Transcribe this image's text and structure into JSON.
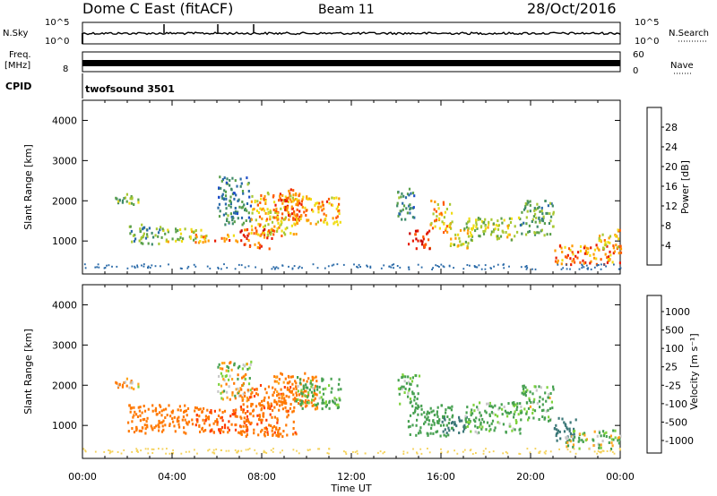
{
  "header": {
    "station": "Dome C East (fitACF)",
    "beam": "Beam 11",
    "date": "28/Oct/2016"
  },
  "top_panels": {
    "nsky_label": "N.Sky",
    "nsky_ticks": [
      "10^5",
      "10^0"
    ],
    "nsearch_label": "N.Search",
    "nsearch_ticks": [
      "10^5",
      "10^0"
    ],
    "freq_label_1": "Freq.",
    "freq_label_2": "[MHz]",
    "freq_ticks": [
      "8"
    ],
    "nave_label": "Nave",
    "nave_ticks": [
      "60",
      "0"
    ],
    "cpid_label": "CPID",
    "cpid_value": "twofsound 3501"
  },
  "colors": {
    "power_scale": [
      "#0a14e6",
      "#1e4ec8",
      "#2a6aa8",
      "#3e8a6a",
      "#5aa04a",
      "#a8c832",
      "#f0dc14",
      "#ff9a00",
      "#ff5a00",
      "#e81c00",
      "#c80000"
    ],
    "velocity_scale": [
      "#e60000",
      "#ff3c00",
      "#ff7800",
      "#ffa51e",
      "#f5d25a",
      "#c8c8c8",
      "#7ed23c",
      "#46a050",
      "#3c7878",
      "#3c64a0",
      "#2848c8"
    ]
  },
  "chart_data": [
    {
      "type": "heatmap",
      "panel": "power",
      "xlabel": "",
      "ylabel": "Slant Range [km]",
      "x_ticks": [
        "00:00",
        "04:00",
        "08:00",
        "12:00",
        "16:00",
        "20:00",
        "00:00"
      ],
      "xlim": [
        0,
        24
      ],
      "y_ticks": [
        "1000",
        "2000",
        "3000",
        "4000"
      ],
      "ylim": [
        180,
        4500
      ],
      "colorbar_label": "Power [dB]",
      "colorbar_ticks": [
        "4",
        "8",
        "12",
        "16",
        "20",
        "24",
        "28"
      ],
      "colorbar_range": [
        0,
        32
      ],
      "echo_regions": [
        {
          "t0": 1.2,
          "t1": 2.5,
          "r0": 1900,
          "r1": 2200,
          "v": 14
        },
        {
          "t0": 2.0,
          "t1": 3.5,
          "r0": 900,
          "r1": 1400,
          "v": 12
        },
        {
          "t0": 3.5,
          "t1": 5.5,
          "r0": 950,
          "r1": 1300,
          "v": 16
        },
        {
          "t0": 5.0,
          "t1": 7.0,
          "r0": 950,
          "r1": 1150,
          "v": 24
        },
        {
          "t0": 6.0,
          "t1": 7.5,
          "r0": 1400,
          "r1": 2600,
          "v": 10
        },
        {
          "t0": 7.0,
          "t1": 8.5,
          "r0": 800,
          "r1": 1300,
          "v": 26
        },
        {
          "t0": 7.5,
          "t1": 9.5,
          "r0": 1100,
          "r1": 2200,
          "v": 20
        },
        {
          "t0": 8.5,
          "t1": 10.0,
          "r0": 1500,
          "r1": 2300,
          "v": 24
        },
        {
          "t0": 9.5,
          "t1": 11.5,
          "r0": 1400,
          "r1": 2100,
          "v": 22
        },
        {
          "t0": 14.0,
          "t1": 14.8,
          "r0": 1500,
          "r1": 2300,
          "v": 10
        },
        {
          "t0": 14.5,
          "t1": 15.5,
          "r0": 800,
          "r1": 1300,
          "v": 28
        },
        {
          "t0": 15.5,
          "t1": 16.5,
          "r0": 1200,
          "r1": 2000,
          "v": 20
        },
        {
          "t0": 16.3,
          "t1": 17.2,
          "r0": 800,
          "r1": 1300,
          "v": 18
        },
        {
          "t0": 17.0,
          "t1": 19.5,
          "r0": 1000,
          "r1": 1600,
          "v": 16
        },
        {
          "t0": 19.5,
          "t1": 21.0,
          "r0": 1100,
          "r1": 2000,
          "v": 12
        },
        {
          "t0": 21.0,
          "t1": 24.0,
          "r0": 400,
          "r1": 900,
          "v": 24
        },
        {
          "t0": 23.0,
          "t1": 24.0,
          "r0": 800,
          "r1": 1300,
          "v": 20
        }
      ]
    },
    {
      "type": "heatmap",
      "panel": "velocity",
      "xlabel": "Time UT",
      "ylabel": "Slant Range [km]",
      "x_ticks": [
        "00:00",
        "04:00",
        "08:00",
        "12:00",
        "16:00",
        "20:00",
        "00:00"
      ],
      "xlim": [
        0,
        24
      ],
      "y_ticks": [
        "1000",
        "2000",
        "3000",
        "4000"
      ],
      "ylim": [
        180,
        4500
      ],
      "colorbar_label": "Velocity [m s⁻¹]",
      "colorbar_ticks": [
        "1000",
        "500",
        "100",
        "25",
        "-25",
        "-100",
        "-500",
        "-1000"
      ],
      "echo_regions": [
        {
          "t0": 1.2,
          "t1": 2.5,
          "r0": 1900,
          "r1": 2200,
          "v": -100
        },
        {
          "t0": 2.0,
          "t1": 5.5,
          "r0": 800,
          "r1": 1500,
          "v": -300
        },
        {
          "t0": 5.0,
          "t1": 7.5,
          "r0": 800,
          "r1": 1400,
          "v": -500
        },
        {
          "t0": 6.0,
          "t1": 7.5,
          "r0": 1600,
          "r1": 2600,
          "v": 0
        },
        {
          "t0": 7.0,
          "t1": 9.5,
          "r0": 700,
          "r1": 2000,
          "v": -400
        },
        {
          "t0": 8.5,
          "t1": 10.5,
          "r0": 1400,
          "r1": 2300,
          "v": -200
        },
        {
          "t0": 9.5,
          "t1": 11.5,
          "r0": 1400,
          "r1": 2200,
          "v": 150
        },
        {
          "t0": 14.0,
          "t1": 15.0,
          "r0": 1500,
          "r1": 2300,
          "v": 120
        },
        {
          "t0": 14.5,
          "t1": 16.5,
          "r0": 700,
          "r1": 1500,
          "v": 300
        },
        {
          "t0": 16.0,
          "t1": 17.2,
          "r0": 800,
          "r1": 1200,
          "v": 800
        },
        {
          "t0": 17.0,
          "t1": 19.5,
          "r0": 800,
          "r1": 1600,
          "v": 150
        },
        {
          "t0": 19.5,
          "t1": 21.0,
          "r0": 1100,
          "r1": 2000,
          "v": 120
        },
        {
          "t0": 21.0,
          "t1": 22.0,
          "r0": 600,
          "r1": 1200,
          "v": 700
        },
        {
          "t0": 21.5,
          "t1": 24.0,
          "r0": 400,
          "r1": 900,
          "v": 60
        }
      ]
    }
  ]
}
